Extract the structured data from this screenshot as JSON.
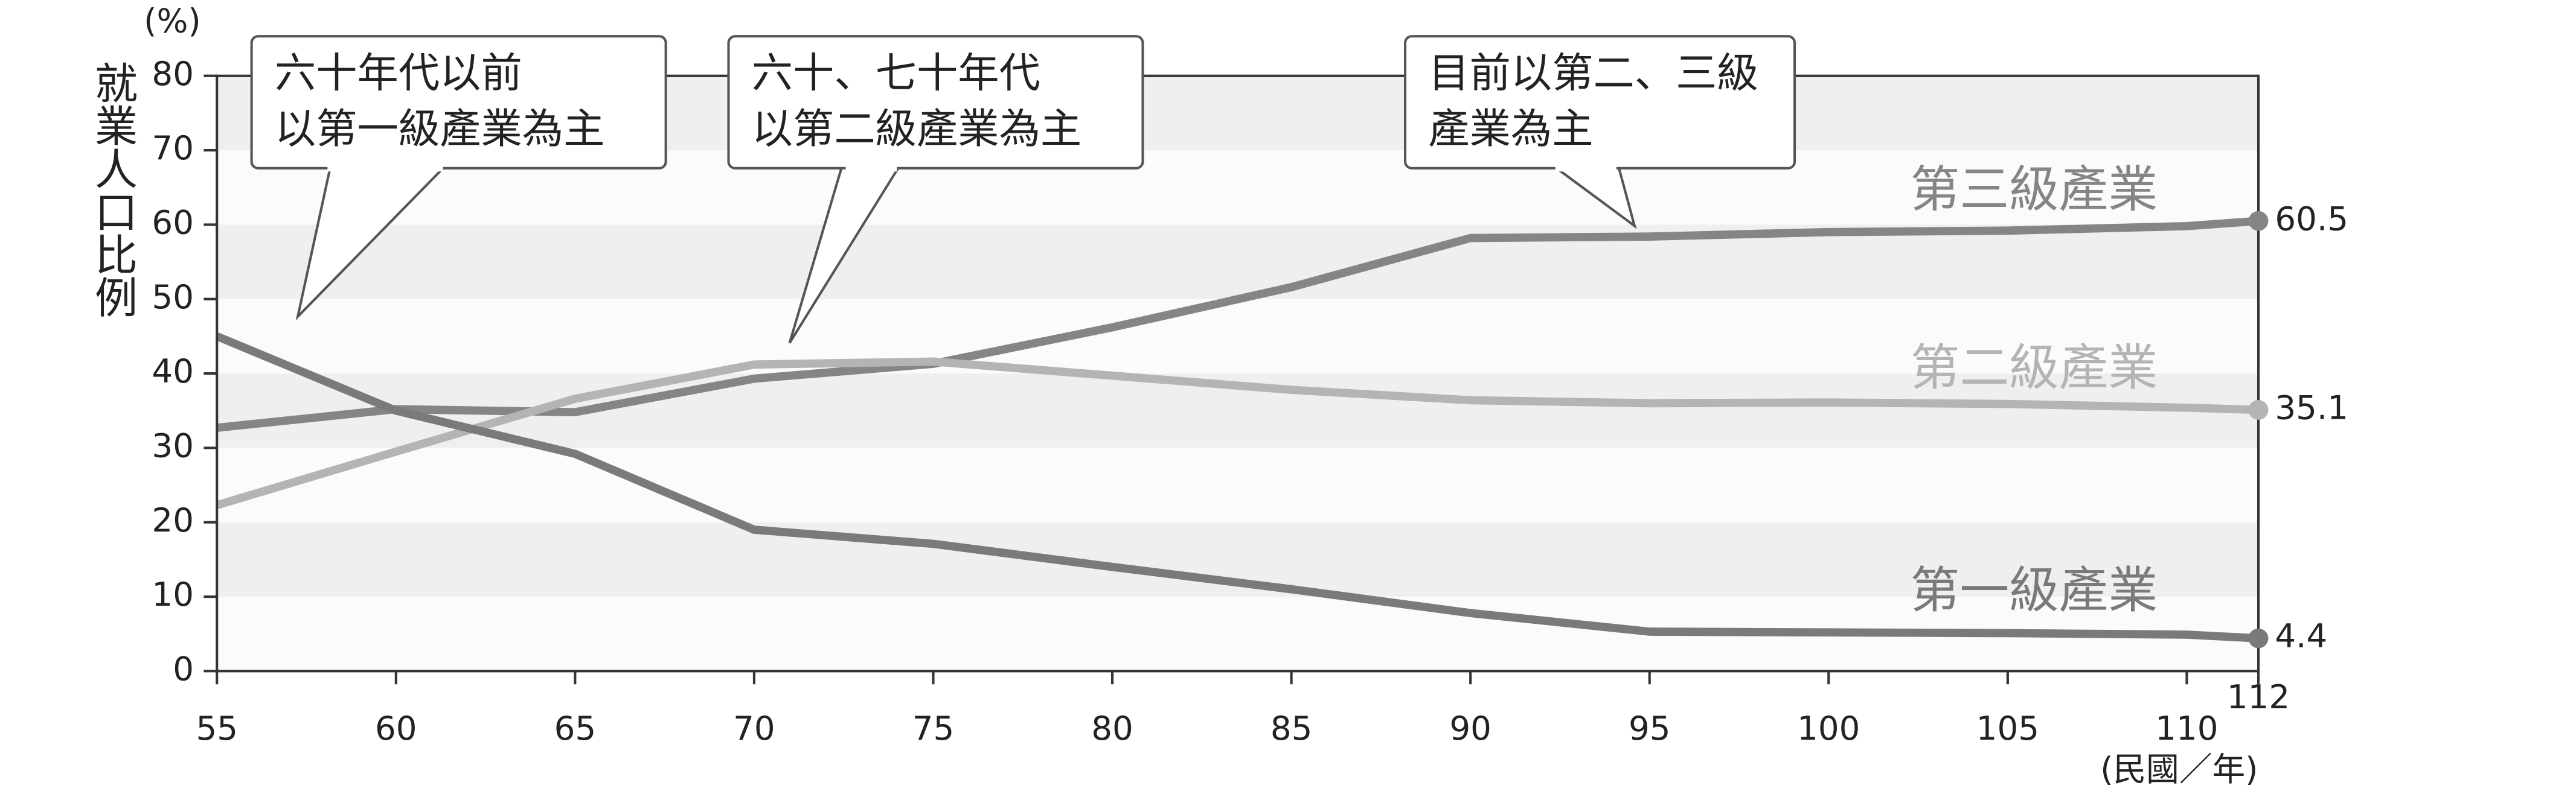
{
  "chart_data": {
    "type": "line",
    "y_label": "就業人口比例",
    "y_unit": "(%)",
    "x_unit": "(民國／年)",
    "x": [
      55,
      60,
      65,
      70,
      75,
      80,
      85,
      90,
      95,
      100,
      105,
      110,
      112
    ],
    "series": [
      {
        "name": "第三級產業",
        "color": "#858585",
        "values": [
          32.7,
          35.2,
          34.8,
          39.3,
          41.3,
          46.2,
          51.6,
          58.2,
          58.4,
          59.0,
          59.2,
          59.8,
          60.5
        ]
      },
      {
        "name": "第二級產業",
        "color": "#b4b4b4",
        "values": [
          22.3,
          29.5,
          36.6,
          41.2,
          41.6,
          39.7,
          37.8,
          36.4,
          36.0,
          36.1,
          35.9,
          35.4,
          35.1
        ]
      },
      {
        "name": "第一級產業",
        "color": "#7a7a7a",
        "values": [
          45.0,
          35.0,
          29.2,
          19.0,
          17.1,
          14.0,
          11.0,
          7.8,
          5.3,
          5.2,
          5.1,
          4.9,
          4.4
        ]
      }
    ],
    "annotations": [
      [
        "六十年代以前",
        "以第一級產業為主"
      ],
      [
        "六十、七十年代",
        "以第二級產業為主"
      ],
      [
        "目前以第二、三級",
        "產業為主"
      ]
    ],
    "xlim": [
      55,
      112
    ],
    "xticks": [
      55,
      60,
      65,
      70,
      75,
      80,
      85,
      90,
      95,
      100,
      105,
      110,
      112
    ],
    "ylim": [
      0,
      80
    ],
    "yticks": [
      0,
      10,
      20,
      30,
      40,
      50,
      60,
      70,
      80
    ],
    "grid": true
  }
}
